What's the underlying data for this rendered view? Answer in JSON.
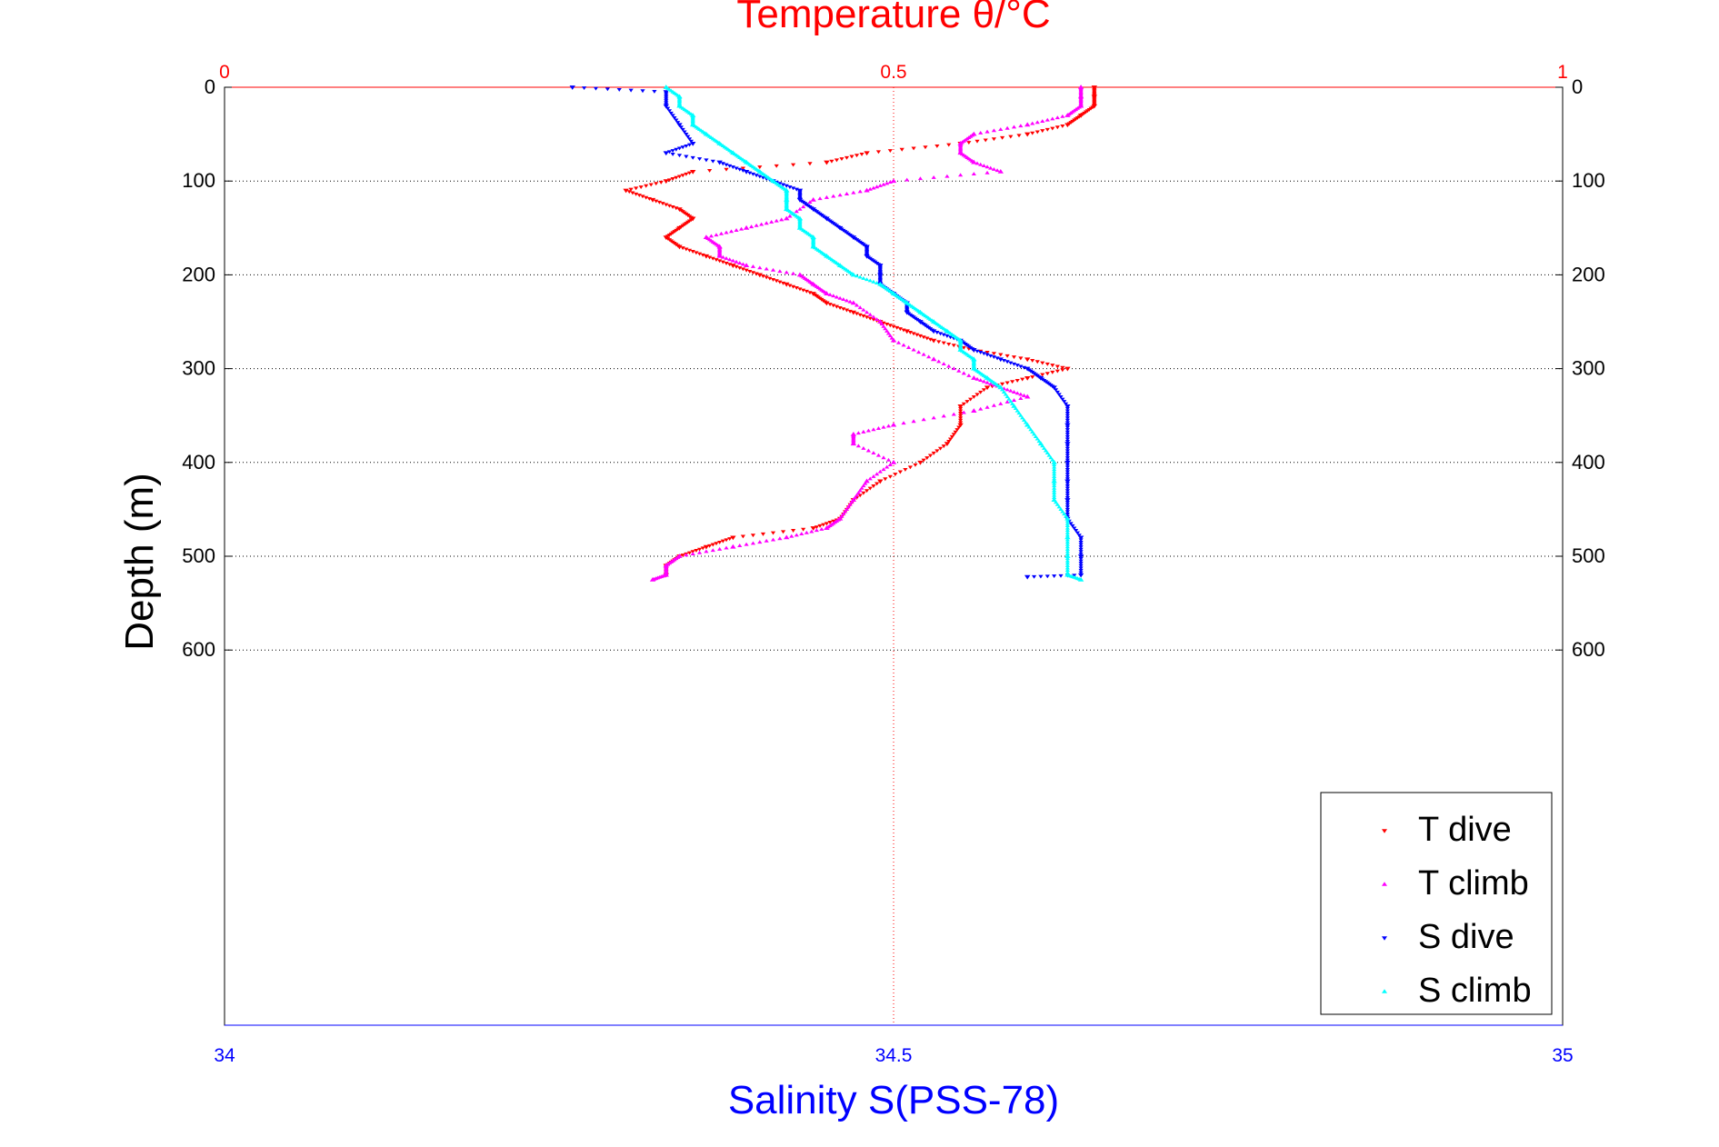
{
  "chart_data": {
    "type": "scatter",
    "title": "Temperature θ/°C",
    "xlabel": "Salinity S(PSS-78)",
    "ylabel": "Depth (m)",
    "top_axis": {
      "range": [
        0,
        1
      ],
      "ticks": [
        "0",
        "0.5",
        "1"
      ],
      "color": "#ff0000"
    },
    "bottom_axis": {
      "range": [
        34,
        35
      ],
      "ticks": [
        "34",
        "34.5",
        "35"
      ],
      "color": "#0000ff"
    },
    "y_axis": {
      "range": [
        0,
        1000
      ],
      "reversed": true,
      "ticks": [
        "0",
        "100",
        "200",
        "300",
        "400",
        "500",
        "600"
      ],
      "tick_values": [
        0,
        100,
        200,
        300,
        400,
        500,
        600
      ]
    },
    "grid": true,
    "legend_position": "bottom-right",
    "series": [
      {
        "name": "T dive",
        "axis": "top",
        "marker": "down-triangle",
        "color": "#ff0000",
        "points": [
          [
            0.65,
            0
          ],
          [
            0.65,
            10
          ],
          [
            0.65,
            20
          ],
          [
            0.64,
            30
          ],
          [
            0.63,
            40
          ],
          [
            0.6,
            50
          ],
          [
            0.55,
            60
          ],
          [
            0.48,
            70
          ],
          [
            0.45,
            80
          ],
          [
            0.35,
            90
          ],
          [
            0.33,
            100
          ],
          [
            0.3,
            110
          ],
          [
            0.32,
            120
          ],
          [
            0.34,
            130
          ],
          [
            0.35,
            140
          ],
          [
            0.34,
            150
          ],
          [
            0.33,
            160
          ],
          [
            0.34,
            170
          ],
          [
            0.36,
            180
          ],
          [
            0.38,
            190
          ],
          [
            0.4,
            200
          ],
          [
            0.42,
            210
          ],
          [
            0.44,
            220
          ],
          [
            0.45,
            230
          ],
          [
            0.47,
            240
          ],
          [
            0.49,
            250
          ],
          [
            0.51,
            260
          ],
          [
            0.53,
            270
          ],
          [
            0.56,
            280
          ],
          [
            0.6,
            290
          ],
          [
            0.63,
            300
          ],
          [
            0.6,
            310
          ],
          [
            0.57,
            320
          ],
          [
            0.55,
            340
          ],
          [
            0.55,
            360
          ],
          [
            0.54,
            380
          ],
          [
            0.52,
            400
          ],
          [
            0.49,
            420
          ],
          [
            0.47,
            440
          ],
          [
            0.46,
            460
          ],
          [
            0.44,
            470
          ],
          [
            0.38,
            480
          ],
          [
            0.36,
            490
          ],
          [
            0.34,
            500
          ],
          [
            0.33,
            510
          ],
          [
            0.33,
            520
          ]
        ]
      },
      {
        "name": "T climb",
        "axis": "top",
        "marker": "up-triangle",
        "color": "#ff00ff",
        "points": [
          [
            0.64,
            0
          ],
          [
            0.64,
            10
          ],
          [
            0.64,
            20
          ],
          [
            0.63,
            30
          ],
          [
            0.6,
            40
          ],
          [
            0.56,
            50
          ],
          [
            0.55,
            60
          ],
          [
            0.55,
            70
          ],
          [
            0.56,
            80
          ],
          [
            0.58,
            90
          ],
          [
            0.5,
            100
          ],
          [
            0.48,
            110
          ],
          [
            0.44,
            120
          ],
          [
            0.42,
            140
          ],
          [
            0.39,
            150
          ],
          [
            0.36,
            160
          ],
          [
            0.37,
            170
          ],
          [
            0.37,
            180
          ],
          [
            0.39,
            190
          ],
          [
            0.43,
            200
          ],
          [
            0.44,
            210
          ],
          [
            0.45,
            220
          ],
          [
            0.47,
            230
          ],
          [
            0.49,
            250
          ],
          [
            0.5,
            270
          ],
          [
            0.53,
            290
          ],
          [
            0.56,
            310
          ],
          [
            0.58,
            320
          ],
          [
            0.6,
            330
          ],
          [
            0.56,
            345
          ],
          [
            0.5,
            360
          ],
          [
            0.47,
            370
          ],
          [
            0.47,
            380
          ],
          [
            0.5,
            400
          ],
          [
            0.48,
            420
          ],
          [
            0.47,
            440
          ],
          [
            0.46,
            460
          ],
          [
            0.45,
            470
          ],
          [
            0.42,
            480
          ],
          [
            0.38,
            490
          ],
          [
            0.34,
            500
          ],
          [
            0.33,
            510
          ],
          [
            0.33,
            520
          ],
          [
            0.32,
            525
          ]
        ]
      },
      {
        "name": "S dive",
        "axis": "bottom",
        "marker": "down-triangle",
        "color": "#0000ff",
        "points": [
          [
            34.26,
            0
          ],
          [
            34.33,
            5
          ],
          [
            34.33,
            20
          ],
          [
            34.34,
            40
          ],
          [
            34.35,
            60
          ],
          [
            34.33,
            70
          ],
          [
            34.37,
            80
          ],
          [
            34.39,
            90
          ],
          [
            34.41,
            100
          ],
          [
            34.43,
            110
          ],
          [
            34.43,
            120
          ],
          [
            34.44,
            130
          ],
          [
            34.45,
            140
          ],
          [
            34.46,
            150
          ],
          [
            34.47,
            160
          ],
          [
            34.48,
            170
          ],
          [
            34.48,
            180
          ],
          [
            34.49,
            190
          ],
          [
            34.49,
            200
          ],
          [
            34.49,
            210
          ],
          [
            34.5,
            220
          ],
          [
            34.51,
            230
          ],
          [
            34.51,
            240
          ],
          [
            34.52,
            250
          ],
          [
            34.53,
            260
          ],
          [
            34.55,
            270
          ],
          [
            34.56,
            280
          ],
          [
            34.58,
            290
          ],
          [
            34.6,
            300
          ],
          [
            34.61,
            310
          ],
          [
            34.62,
            320
          ],
          [
            34.63,
            340
          ],
          [
            34.63,
            360
          ],
          [
            34.63,
            380
          ],
          [
            34.63,
            400
          ],
          [
            34.63,
            420
          ],
          [
            34.63,
            440
          ],
          [
            34.63,
            460
          ],
          [
            34.64,
            480
          ],
          [
            34.64,
            500
          ],
          [
            34.64,
            520
          ],
          [
            34.6,
            522
          ]
        ]
      },
      {
        "name": "S climb",
        "axis": "bottom",
        "marker": "up-triangle",
        "color": "#00ffff",
        "points": [
          [
            34.33,
            0
          ],
          [
            34.34,
            10
          ],
          [
            34.34,
            20
          ],
          [
            34.35,
            30
          ],
          [
            34.35,
            40
          ],
          [
            34.36,
            50
          ],
          [
            34.37,
            60
          ],
          [
            34.38,
            70
          ],
          [
            34.39,
            80
          ],
          [
            34.4,
            90
          ],
          [
            34.41,
            100
          ],
          [
            34.42,
            110
          ],
          [
            34.42,
            120
          ],
          [
            34.42,
            130
          ],
          [
            34.43,
            140
          ],
          [
            34.43,
            150
          ],
          [
            34.44,
            160
          ],
          [
            34.44,
            170
          ],
          [
            34.45,
            180
          ],
          [
            34.46,
            190
          ],
          [
            34.47,
            200
          ],
          [
            34.49,
            210
          ],
          [
            34.5,
            220
          ],
          [
            34.51,
            230
          ],
          [
            34.52,
            240
          ],
          [
            34.53,
            250
          ],
          [
            34.54,
            260
          ],
          [
            34.55,
            270
          ],
          [
            34.55,
            280
          ],
          [
            34.56,
            290
          ],
          [
            34.56,
            300
          ],
          [
            34.57,
            310
          ],
          [
            34.58,
            320
          ],
          [
            34.59,
            340
          ],
          [
            34.6,
            360
          ],
          [
            34.61,
            380
          ],
          [
            34.62,
            400
          ],
          [
            34.62,
            420
          ],
          [
            34.62,
            440
          ],
          [
            34.63,
            460
          ],
          [
            34.63,
            480
          ],
          [
            34.63,
            500
          ],
          [
            34.63,
            520
          ],
          [
            34.64,
            525
          ]
        ]
      }
    ]
  }
}
